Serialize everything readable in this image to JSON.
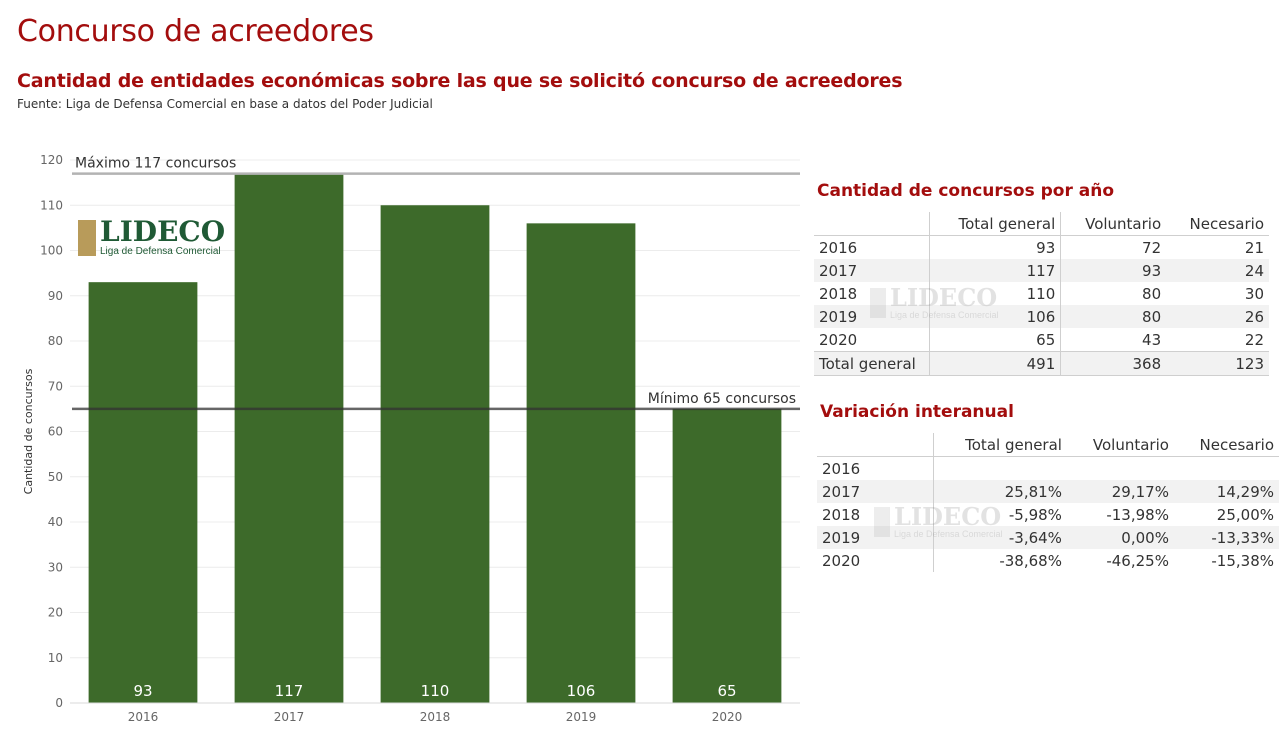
{
  "header": {
    "title": "Concurso de acreedores",
    "subtitle": "Cantidad de entidades económicas sobre las que se solicitó concurso de acreedores",
    "source": "Fuente: Liga de Defensa Comercial en base a datos del Poder Judicial"
  },
  "logo": {
    "main": "LIDECO",
    "sub": "Liga de Defensa Comercial"
  },
  "chart_data": {
    "type": "bar",
    "categories": [
      "2016",
      "2017",
      "2018",
      "2019",
      "2020"
    ],
    "values": [
      93,
      117,
      110,
      106,
      65
    ],
    "ylabel": "Cantidad de concursos",
    "xlabel": "",
    "ylim": [
      0,
      120
    ],
    "yticks": [
      0,
      10,
      20,
      30,
      40,
      50,
      60,
      70,
      80,
      90,
      100,
      110,
      120
    ],
    "grid": true,
    "bar_color": "#3d6a2a",
    "reference_lines": [
      {
        "value": 117,
        "label": "Máximo 117 concursos",
        "color": "#b3b3b3"
      },
      {
        "value": 65,
        "label": "Mínimo 65 concursos",
        "color": "#333333"
      }
    ]
  },
  "table_counts": {
    "title": "Cantidad de concursos por año",
    "columns": [
      "Total general",
      "Voluntario",
      "Necesario"
    ],
    "rows": [
      {
        "year": "2016",
        "total": "93",
        "voluntario": "72",
        "necesario": "21"
      },
      {
        "year": "2017",
        "total": "117",
        "voluntario": "93",
        "necesario": "24"
      },
      {
        "year": "2018",
        "total": "110",
        "voluntario": "80",
        "necesario": "30"
      },
      {
        "year": "2019",
        "total": "106",
        "voluntario": "80",
        "necesario": "26"
      },
      {
        "year": "2020",
        "total": "65",
        "voluntario": "43",
        "necesario": "22"
      }
    ],
    "total_row": {
      "label": "Total general",
      "total": "491",
      "voluntario": "368",
      "necesario": "123"
    }
  },
  "table_variation": {
    "title": "Variación interanual",
    "columns": [
      "Total general",
      "Voluntario",
      "Necesario"
    ],
    "rows": [
      {
        "year": "2016",
        "total": "",
        "voluntario": "",
        "necesario": ""
      },
      {
        "year": "2017",
        "total": "25,81%",
        "voluntario": "29,17%",
        "necesario": "14,29%"
      },
      {
        "year": "2018",
        "total": "-5,98%",
        "voluntario": "-13,98%",
        "necesario": "25,00%"
      },
      {
        "year": "2019",
        "total": "-3,64%",
        "voluntario": "0,00%",
        "necesario": "-13,33%"
      },
      {
        "year": "2020",
        "total": "-38,68%",
        "voluntario": "-46,25%",
        "necesario": "-15,38%"
      }
    ]
  }
}
